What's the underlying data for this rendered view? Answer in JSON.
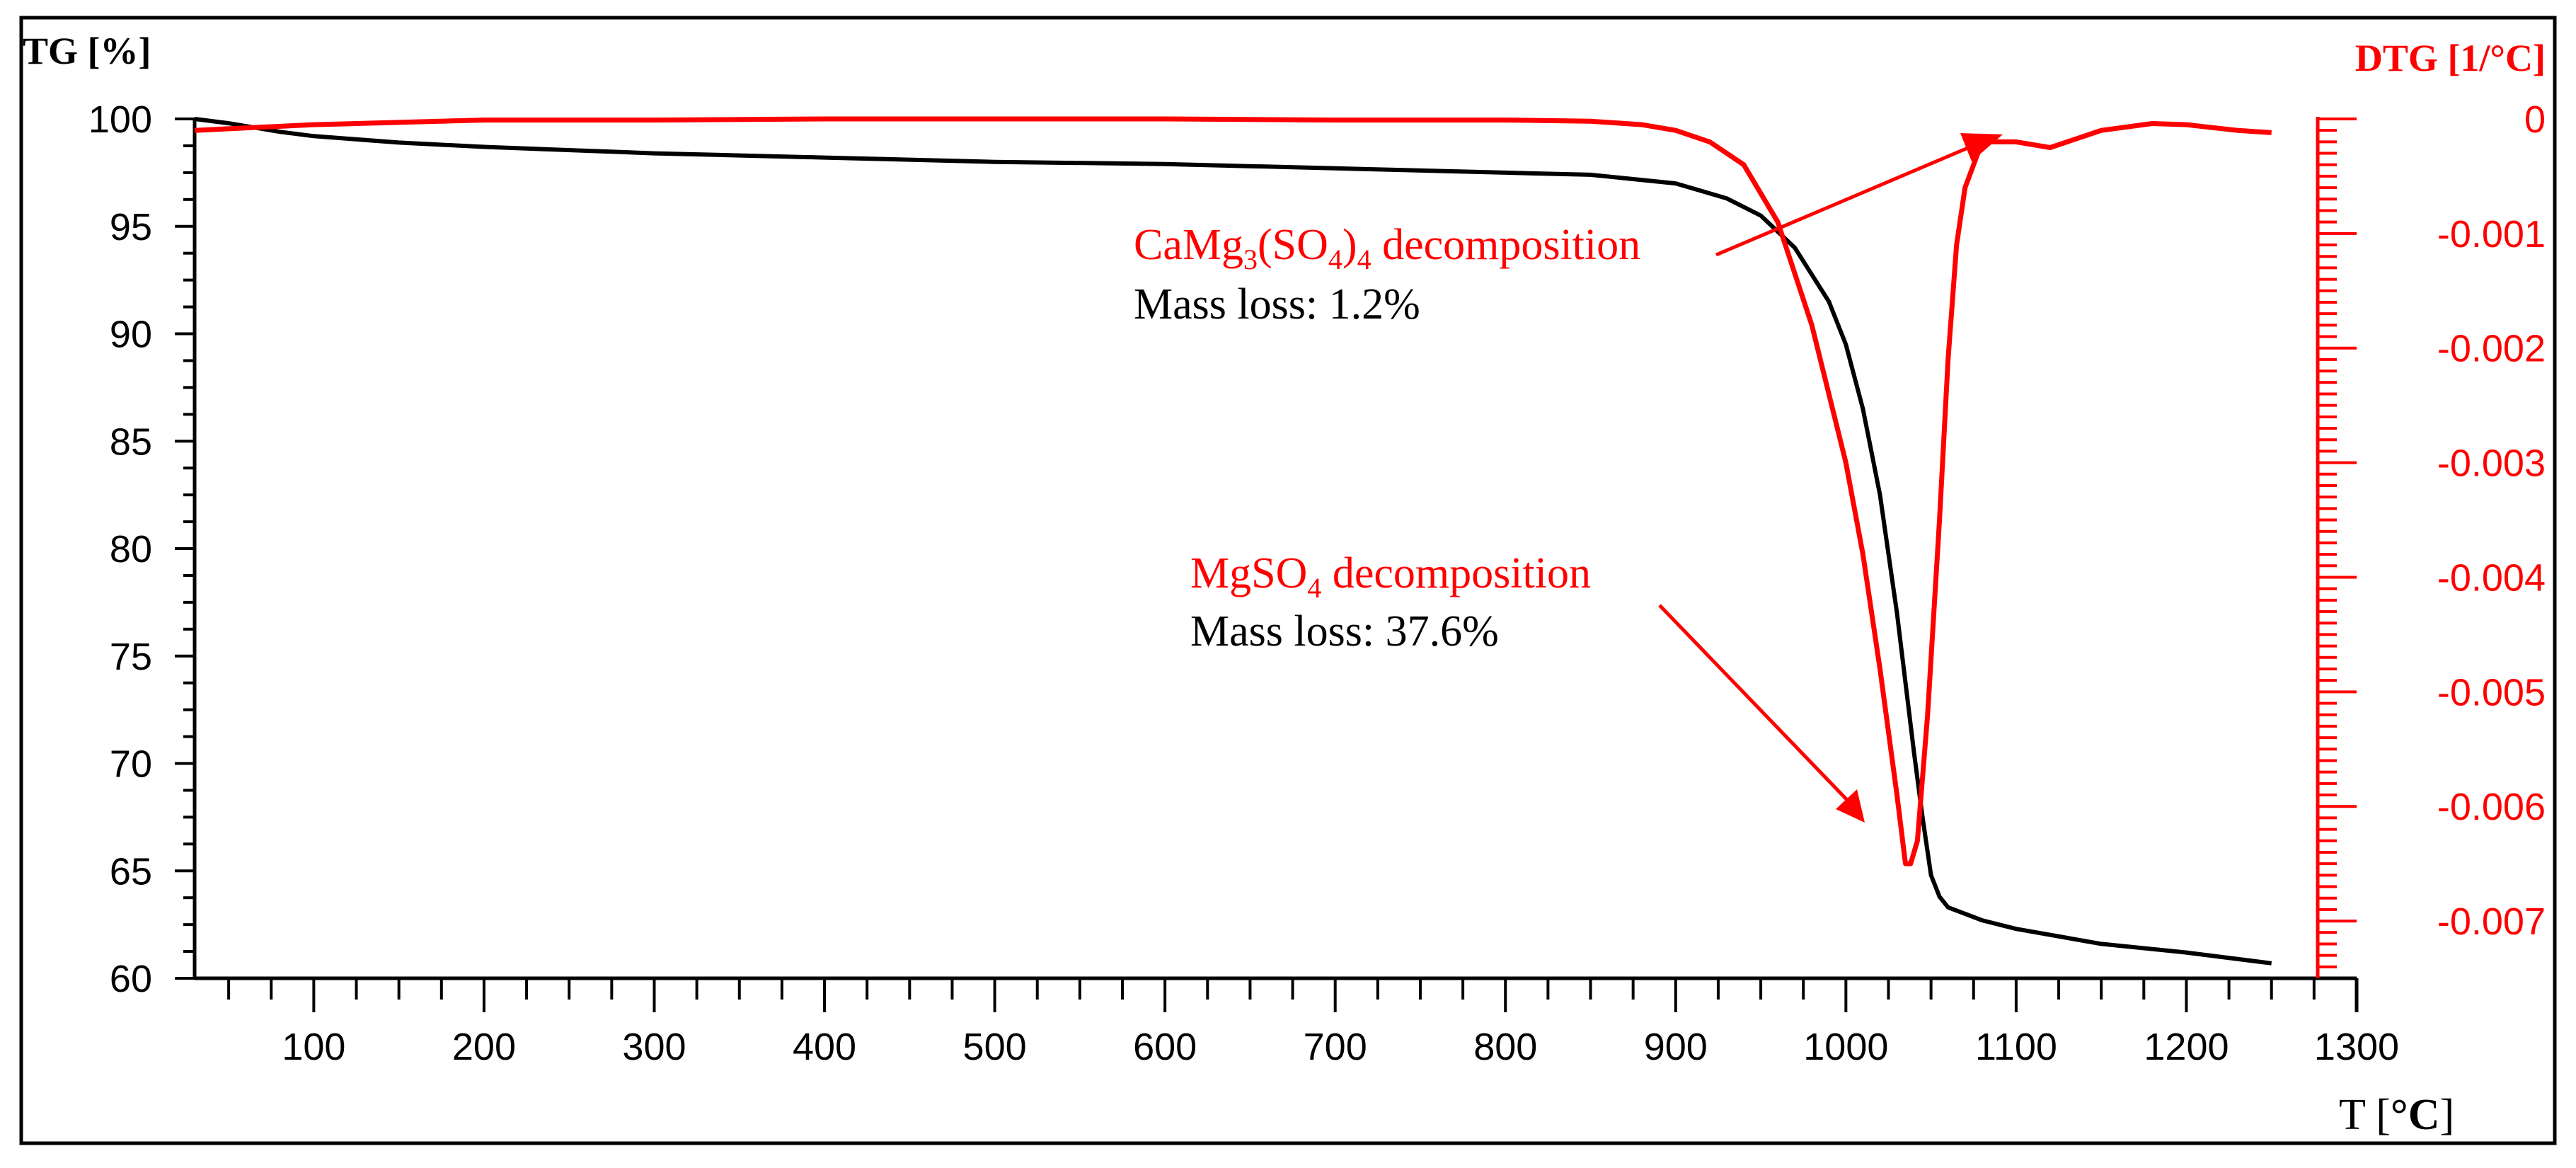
{
  "chart_data": {
    "type": "line",
    "xlabel": "T [°C]",
    "xlabel_unit_prefix": "T [",
    "xlabel_unit": "°C",
    "xlabel_unit_suffix": "]",
    "ylabel_left": "TG [%]",
    "ylabel_right": "DTG [1/°C]",
    "xlim": [
      30,
      1300
    ],
    "ylim_left": [
      60,
      100
    ],
    "ylim_right": [
      -0.0075,
      0
    ],
    "x_ticks": [
      100,
      200,
      300,
      400,
      500,
      600,
      700,
      800,
      900,
      1000,
      1100,
      1200,
      1300
    ],
    "x_tick_labels": [
      "100",
      "200",
      "300",
      "400",
      "500",
      "600",
      "700",
      "800",
      "900",
      "1000",
      "1100",
      "1200",
      "1300"
    ],
    "y_left_ticks": [
      100,
      95,
      90,
      85,
      80,
      75,
      70,
      65,
      60
    ],
    "y_left_tick_labels": [
      "100",
      "95",
      "90",
      "85",
      "80",
      "75",
      "70",
      "65",
      "60"
    ],
    "y_right_ticks": [
      0,
      -0.001,
      -0.002,
      -0.003,
      -0.004,
      -0.005,
      -0.006,
      -0.007
    ],
    "y_right_tick_labels": [
      "0",
      "-0.001",
      "-0.002",
      "-0.003",
      "-0.004",
      "-0.005",
      "-0.006",
      "-0.007"
    ],
    "series": [
      {
        "name": "TG",
        "axis": "left",
        "color": "#000000",
        "x": [
          30,
          50,
          80,
          100,
          150,
          200,
          300,
          400,
          500,
          600,
          700,
          800,
          850,
          900,
          930,
          950,
          970,
          990,
          1000,
          1010,
          1020,
          1030,
          1040,
          1045,
          1050,
          1055,
          1060,
          1080,
          1100,
          1150,
          1200,
          1250
        ],
        "y": [
          100,
          99.8,
          99.4,
          99.2,
          98.9,
          98.7,
          98.4,
          98.2,
          98.0,
          97.9,
          97.7,
          97.5,
          97.4,
          97.0,
          96.3,
          95.5,
          94.0,
          91.5,
          89.5,
          86.5,
          82.5,
          77.0,
          70.5,
          67.5,
          64.8,
          63.8,
          63.3,
          62.7,
          62.3,
          61.6,
          61.2,
          60.7
        ]
      },
      {
        "name": "DTG",
        "axis": "right",
        "color": "#ff0000",
        "x": [
          30,
          100,
          200,
          300,
          400,
          500,
          600,
          700,
          800,
          850,
          880,
          900,
          920,
          940,
          960,
          980,
          1000,
          1010,
          1020,
          1030,
          1035,
          1038,
          1042,
          1048,
          1055,
          1060,
          1065,
          1070,
          1080,
          1090,
          1100,
          1120,
          1150,
          1180,
          1200,
          1230,
          1250
        ],
        "y": [
          -0.0001,
          -5e-05,
          -1e-05,
          -1e-05,
          0,
          0,
          0,
          -1e-05,
          -1e-05,
          -2e-05,
          -5e-05,
          -0.0001,
          -0.0002,
          -0.0004,
          -0.0009,
          -0.0018,
          -0.003,
          -0.0038,
          -0.0048,
          -0.0059,
          -0.0065,
          -0.0065,
          -0.0063,
          -0.0052,
          -0.0035,
          -0.0021,
          -0.0011,
          -0.0006,
          -0.0002,
          -0.0002,
          -0.0002,
          -0.00025,
          -0.0001,
          -4e-05,
          -5e-05,
          -0.0001,
          -0.00012
        ]
      }
    ],
    "annotations": [
      {
        "name": "camg3so4",
        "title_parts": [
          "CaMg",
          "3",
          "(SO",
          "4",
          ")",
          "4",
          " decomposition"
        ],
        "mass_loss": "Mass loss: 1.2%",
        "arrow_target": {
          "x": 1085,
          "y_right": -0.0002
        }
      },
      {
        "name": "mgso4",
        "title_parts": [
          "MgSO",
          "4",
          " decomposition"
        ],
        "mass_loss": "Mass loss: 37.6%",
        "arrow_target": {
          "x": 1005,
          "y_right": -0.006
        }
      }
    ]
  },
  "colors": {
    "tg": "#000000",
    "dtg": "#ff0000"
  }
}
